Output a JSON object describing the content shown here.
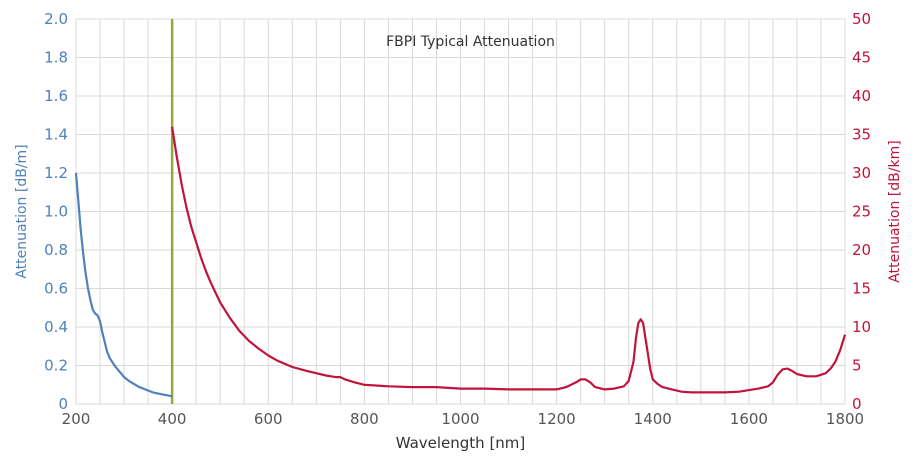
{
  "chart_data": {
    "type": "line",
    "title": "FBPI Typical Attenuation",
    "xlabel": "Wavelength [nm]",
    "ylabel_left": "Attenuation [dB/m]",
    "ylabel_right": "Attenuation [dB/km]",
    "xlim": [
      200,
      1800
    ],
    "ylim_left": [
      0,
      2.0
    ],
    "ylim_right": [
      0,
      50
    ],
    "x_ticks": [
      "200",
      "400",
      "600",
      "800",
      "1000",
      "1200",
      "1400",
      "1600",
      "1800"
    ],
    "y_left_ticks": [
      "0",
      "0.2",
      "0.4",
      "0.6",
      "0.8",
      "1.0",
      "1.2",
      "1.4",
      "1.6",
      "1.8",
      "2.0"
    ],
    "y_right_ticks": [
      "0",
      "5",
      "10",
      "15",
      "20",
      "25",
      "30",
      "35",
      "40",
      "45",
      "50"
    ],
    "grid": true,
    "divider_x": 400,
    "colors": {
      "left": "#4f81bd",
      "right": "#c0143c",
      "divider": "#8fa93f",
      "grid": "#d9d9d9"
    },
    "series": [
      {
        "axis": "left",
        "x": [
          200,
          205,
          210,
          215,
          220,
          225,
          230,
          235,
          240,
          245,
          250,
          255,
          260,
          265,
          270,
          280,
          290,
          300,
          310,
          320,
          330,
          340,
          350,
          360,
          370,
          380,
          390,
          400
        ],
        "y": [
          1.2,
          1.05,
          0.9,
          0.78,
          0.68,
          0.6,
          0.54,
          0.49,
          0.47,
          0.46,
          0.43,
          0.37,
          0.32,
          0.27,
          0.24,
          0.2,
          0.17,
          0.14,
          0.12,
          0.105,
          0.09,
          0.08,
          0.07,
          0.06,
          0.055,
          0.05,
          0.045,
          0.04
        ]
      },
      {
        "axis": "right",
        "x": [
          400,
          410,
          420,
          430,
          440,
          450,
          460,
          470,
          480,
          490,
          500,
          520,
          540,
          560,
          580,
          600,
          620,
          650,
          680,
          700,
          720,
          740,
          750,
          760,
          780,
          800,
          850,
          900,
          950,
          1000,
          1050,
          1100,
          1150,
          1200,
          1220,
          1240,
          1250,
          1260,
          1270,
          1280,
          1300,
          1320,
          1340,
          1350,
          1360,
          1365,
          1370,
          1375,
          1380,
          1385,
          1390,
          1395,
          1400,
          1410,
          1420,
          1440,
          1460,
          1480,
          1500,
          1550,
          1580,
          1600,
          1620,
          1640,
          1650,
          1660,
          1670,
          1680,
          1690,
          1700,
          1720,
          1740,
          1760,
          1770,
          1780,
          1790,
          1800
        ],
        "y": [
          36,
          32,
          28.5,
          25.5,
          23,
          21,
          19,
          17.3,
          15.8,
          14.5,
          13.2,
          11.2,
          9.5,
          8.2,
          7.2,
          6.3,
          5.6,
          4.8,
          4.3,
          4,
          3.7,
          3.5,
          3.5,
          3.2,
          2.8,
          2.5,
          2.3,
          2.2,
          2.2,
          2.0,
          2.0,
          1.9,
          1.9,
          1.9,
          2.2,
          2.8,
          3.2,
          3.2,
          2.8,
          2.2,
          1.9,
          2.0,
          2.3,
          3.0,
          5.5,
          8.5,
          10.5,
          11.0,
          10.5,
          8.5,
          6.5,
          4.5,
          3.2,
          2.6,
          2.2,
          1.9,
          1.6,
          1.5,
          1.5,
          1.5,
          1.6,
          1.8,
          2.0,
          2.3,
          2.8,
          3.8,
          4.5,
          4.6,
          4.3,
          3.9,
          3.6,
          3.6,
          4.0,
          4.6,
          5.5,
          7.0,
          9.0
        ]
      }
    ]
  }
}
